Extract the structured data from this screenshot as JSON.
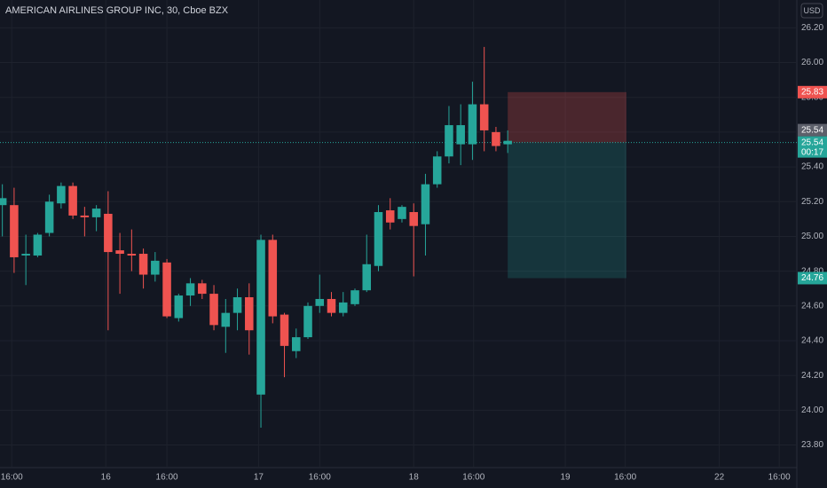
{
  "chart_data": {
    "type": "candlestick",
    "title": "AMERICAN AIRLINES GROUP INC, 30, Cboe BZX",
    "currency": "USD",
    "up_color": "#26a69a",
    "down_color": "#ef5350",
    "grid": true,
    "x": [
      0,
      1,
      2,
      3,
      4,
      5,
      6,
      7,
      8,
      9,
      10,
      11,
      12,
      13,
      14,
      15,
      16,
      17,
      18,
      19,
      20,
      21,
      22,
      23,
      24,
      25,
      26,
      27,
      28,
      29,
      30,
      31,
      32,
      33,
      34,
      35,
      36,
      37,
      38,
      39,
      40,
      41,
      42,
      43
    ],
    "open": [
      25.18,
      25.18,
      24.89,
      24.89,
      25.02,
      25.19,
      25.29,
      25.12,
      25.11,
      25.13,
      24.92,
      24.9,
      24.9,
      24.78,
      24.85,
      24.53,
      24.66,
      24.73,
      24.67,
      24.48,
      24.56,
      24.65,
      24.09,
      24.98,
      24.55,
      24.34,
      24.42,
      24.6,
      24.64,
      24.56,
      24.61,
      24.69,
      24.83,
      25.15,
      25.1,
      25.14,
      25.07,
      25.3,
      25.46,
      25.53,
      25.53,
      25.76,
      25.6,
      25.53
    ],
    "high": [
      25.3,
      25.28,
      25.01,
      25.02,
      25.24,
      25.31,
      25.31,
      25.17,
      25.18,
      25.26,
      25.02,
      25.04,
      24.93,
      24.91,
      24.87,
      24.67,
      24.76,
      24.75,
      24.72,
      24.64,
      24.7,
      24.73,
      25.01,
      25.01,
      24.56,
      24.47,
      24.62,
      24.78,
      24.68,
      24.68,
      24.7,
      25.01,
      25.18,
      25.22,
      25.18,
      25.19,
      25.36,
      25.49,
      25.75,
      25.76,
      25.89,
      26.09,
      25.63,
      25.61
    ],
    "low": [
      25.0,
      24.79,
      24.72,
      24.88,
      25.0,
      25.16,
      25.1,
      25.0,
      25.03,
      24.46,
      24.67,
      24.8,
      24.7,
      24.74,
      24.53,
      24.51,
      24.6,
      24.64,
      24.46,
      24.33,
      24.46,
      24.32,
      23.9,
      24.5,
      24.19,
      24.3,
      24.41,
      24.56,
      24.54,
      24.54,
      24.6,
      24.68,
      24.8,
      25.04,
      25.08,
      24.77,
      24.89,
      25.28,
      25.42,
      25.41,
      25.44,
      25.49,
      25.49,
      25.48
    ],
    "close": [
      25.22,
      24.88,
      24.9,
      25.01,
      25.2,
      25.29,
      25.12,
      25.11,
      25.16,
      24.91,
      24.9,
      24.89,
      24.78,
      24.86,
      24.54,
      24.66,
      24.73,
      24.67,
      24.49,
      24.56,
      24.65,
      24.46,
      24.98,
      24.54,
      24.37,
      24.42,
      24.6,
      24.64,
      24.56,
      24.62,
      24.69,
      24.84,
      25.14,
      25.08,
      25.17,
      25.06,
      25.3,
      25.46,
      25.64,
      25.64,
      25.76,
      25.61,
      25.52,
      25.55
    ],
    "xlim": [
      -0.2,
      67.6
    ],
    "xticks": [
      {
        "value": 0.8,
        "label": "16:00"
      },
      {
        "value": 8.8,
        "label": "16"
      },
      {
        "value": 14,
        "label": "16:00"
      },
      {
        "value": 21.8,
        "label": "17"
      },
      {
        "value": 27,
        "label": "16:00"
      },
      {
        "value": 35,
        "label": "18"
      },
      {
        "value": 40.1,
        "label": "16:00"
      },
      {
        "value": 47.9,
        "label": "19"
      },
      {
        "value": 53,
        "label": "16:00"
      },
      {
        "value": 61,
        "label": "22"
      },
      {
        "value": 66.1,
        "label": "16:00"
      }
    ],
    "ylim": [
      23.67,
      26.36
    ],
    "yticks": [
      {
        "value": 23.8,
        "label": "23.80"
      },
      {
        "value": 24,
        "label": "24.00"
      },
      {
        "value": 24.2,
        "label": "24.20"
      },
      {
        "value": 24.4,
        "label": "24.40"
      },
      {
        "value": 24.6,
        "label": "24.60"
      },
      {
        "value": 24.8,
        "label": "24.80"
      },
      {
        "value": 25,
        "label": "25.00"
      },
      {
        "value": 25.2,
        "label": "25.20"
      },
      {
        "value": 25.4,
        "label": "25.40"
      },
      {
        "value": 25.6,
        "label": "25.60"
      },
      {
        "value": 25.8,
        "label": "25.80"
      },
      {
        "value": 26,
        "label": "26.00"
      },
      {
        "value": 26.2,
        "label": "26.20"
      }
    ],
    "position": {
      "x": [
        43,
        53.1
      ],
      "stop": 25.83,
      "entry": 25.54,
      "target": 24.76
    },
    "last_price": 25.54,
    "countdown": "00:17"
  }
}
